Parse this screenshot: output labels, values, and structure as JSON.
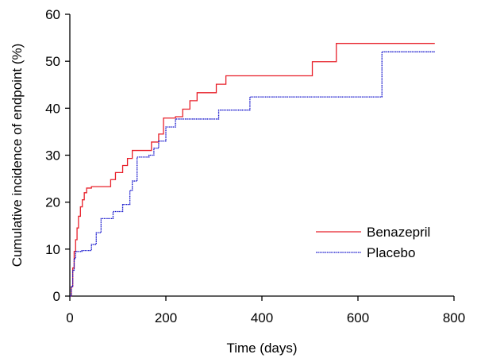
{
  "chart_data": {
    "type": "line",
    "step": true,
    "xlabel": "Time (days)",
    "ylabel": "Cumulative incidence of endpoint (%)",
    "xlim": [
      0,
      800
    ],
    "ylim": [
      0,
      60
    ],
    "xticks": [
      0,
      200,
      400,
      600,
      800
    ],
    "yticks": [
      0,
      10,
      20,
      30,
      40,
      50,
      60
    ],
    "grid": false,
    "legend_position": "right",
    "series": [
      {
        "name": "Benazepril",
        "color": "#e8202a",
        "dash": "solid",
        "x": [
          0,
          3,
          6,
          9,
          12,
          15,
          18,
          22,
          26,
          30,
          35,
          40,
          45,
          85,
          95,
          110,
          120,
          130,
          170,
          185,
          195,
          220,
          235,
          250,
          265,
          305,
          325,
          505,
          555,
          760
        ],
        "y": [
          0,
          2,
          6,
          9.5,
          12,
          14.5,
          17,
          19,
          20.5,
          22,
          23,
          23,
          23.3,
          24.8,
          26.3,
          27.8,
          29.3,
          31,
          32.8,
          34.5,
          37.9,
          38.2,
          39.8,
          41.6,
          43.3,
          45.1,
          46.9,
          49.9,
          53.8,
          53.8
        ]
      },
      {
        "name": "Placebo",
        "color": "#1414cc",
        "dash": "dotted",
        "x": [
          0,
          3,
          6,
          9,
          12,
          25,
          45,
          55,
          65,
          90,
          110,
          125,
          130,
          140,
          165,
          175,
          185,
          200,
          220,
          310,
          375,
          650,
          760
        ],
        "y": [
          0,
          2,
          5.5,
          8,
          9.5,
          9.7,
          11,
          13.5,
          16.5,
          18,
          19.5,
          22.5,
          24.5,
          29.6,
          30,
          31.5,
          33,
          36,
          37.7,
          39.6,
          42.4,
          52,
          52
        ]
      }
    ]
  }
}
